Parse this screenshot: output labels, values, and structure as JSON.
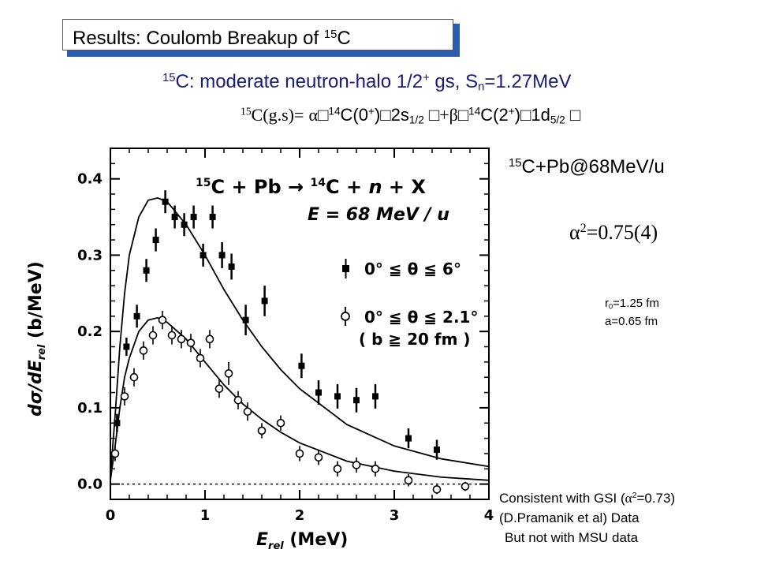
{
  "title": {
    "prefix": "Results: Coulomb Breakup of ",
    "mass": "15",
    "element": "C"
  },
  "subtitle": {
    "mass": "15",
    "text_a": "C: moderate neutron-halo 1/2",
    "sup_plus": "+",
    "text_b": " gs, S",
    "sub_n": "n",
    "text_c": "=1.27MeV"
  },
  "formula": {
    "mass": "15",
    "lhs": "C(g.s)=",
    "alpha": "α",
    "core1_mass": "14",
    "core1": "C(0",
    "core1_sup": "+",
    "core1_close": ")",
    "orb1": "2s",
    "orb1_sub": "1/2",
    "plus": "+",
    "beta": "β",
    "core2_mass": "14",
    "core2": "C(2",
    "core2_sup": "+",
    "core2_close": ")",
    "orb2": "1d",
    "orb2_sub": "5/2",
    "placeholder_glyph": "□"
  },
  "reaction": {
    "mass": "15",
    "text": "C+Pb@68MeV/u"
  },
  "alpha_result": {
    "alpha": "α",
    "exp": "2",
    "value": "=0.75(4)"
  },
  "params": {
    "r0_label": "r",
    "r0_sub": "0",
    "r0_value": "=1.25 fm",
    "a": "a=0.65 fm"
  },
  "notes": {
    "line1_a": "Consistent with GSI (",
    "alpha": "α",
    "exp": "2",
    "line1_b": "=0.73)",
    "line2": "(D.Pramanik et al) Data",
    "line3": "But not with MSU data"
  },
  "chart_data": {
    "type": "scatter",
    "inplot_title": {
      "a": "15",
      "b": "C + Pb → ",
      "c": "14",
      "d": "C + ",
      "e": "n",
      "f": " + X"
    },
    "energy_label": "E = 68 MeV / u",
    "xlabel": "E",
    "xlabel_sub": "rel",
    "xlabel_unit": " (MeV)",
    "ylabel": "dσ/dE",
    "ylabel_sub": "rel",
    "ylabel_unit": " (b/MeV)",
    "xlim": [
      0,
      4
    ],
    "ylim": [
      -0.02,
      0.44
    ],
    "xticks": [
      "0",
      "1",
      "2",
      "3",
      "4"
    ],
    "yticks": [
      "0.0",
      "0.1",
      "0.2",
      "0.3",
      "0.4"
    ],
    "legend": {
      "filled": "0° ≦ θ ≦ 6°",
      "open_1": "0° ≦ θ ≦ 2.1°",
      "open_2": "( b ≧ 20 fm )"
    },
    "series": [
      {
        "marker": "filled-square",
        "x": [
          0.07,
          0.17,
          0.28,
          0.38,
          0.48,
          0.58,
          0.68,
          0.78,
          0.88,
          0.98,
          1.08,
          1.18,
          1.28,
          1.43,
          1.63,
          2.02,
          2.2,
          2.4,
          2.6,
          2.8,
          3.15,
          3.45
        ],
        "y": [
          0.08,
          0.18,
          0.22,
          0.28,
          0.32,
          0.37,
          0.35,
          0.34,
          0.35,
          0.3,
          0.35,
          0.3,
          0.285,
          0.215,
          0.24,
          0.155,
          0.12,
          0.115,
          0.11,
          0.115,
          0.06,
          0.045
        ],
        "err": [
          0.012,
          0.012,
          0.015,
          0.015,
          0.015,
          0.015,
          0.015,
          0.015,
          0.015,
          0.015,
          0.015,
          0.017,
          0.017,
          0.02,
          0.02,
          0.016,
          0.016,
          0.016,
          0.016,
          0.016,
          0.013,
          0.013
        ]
      },
      {
        "marker": "open-circle",
        "x": [
          0.05,
          0.15,
          0.25,
          0.35,
          0.45,
          0.55,
          0.65,
          0.75,
          0.85,
          0.95,
          1.05,
          1.15,
          1.25,
          1.35,
          1.45,
          1.6,
          1.8,
          2.0,
          2.2,
          2.4,
          2.6,
          2.8,
          3.15,
          3.45,
          3.75
        ],
        "y": [
          0.04,
          0.115,
          0.14,
          0.175,
          0.195,
          0.215,
          0.195,
          0.19,
          0.185,
          0.165,
          0.19,
          0.125,
          0.145,
          0.11,
          0.095,
          0.07,
          0.08,
          0.04,
          0.035,
          0.02,
          0.025,
          0.02,
          0.005,
          -0.007,
          -0.003
        ],
        "err": [
          0.01,
          0.012,
          0.012,
          0.012,
          0.012,
          0.012,
          0.012,
          0.012,
          0.012,
          0.012,
          0.012,
          0.012,
          0.015,
          0.012,
          0.012,
          0.01,
          0.01,
          0.01,
          0.01,
          0.01,
          0.01,
          0.01,
          0.008,
          0.006,
          0.006
        ]
      }
    ],
    "curves": [
      {
        "x": [
          0.0,
          0.05,
          0.1,
          0.15,
          0.2,
          0.3,
          0.4,
          0.5,
          0.6,
          0.8,
          1.0,
          1.2,
          1.4,
          1.6,
          1.8,
          2.0,
          2.5,
          3.0,
          3.5,
          4.0
        ],
        "y": [
          0.01,
          0.09,
          0.18,
          0.25,
          0.3,
          0.35,
          0.372,
          0.375,
          0.37,
          0.34,
          0.3,
          0.255,
          0.215,
          0.18,
          0.15,
          0.125,
          0.078,
          0.05,
          0.033,
          0.023
        ]
      },
      {
        "x": [
          0.0,
          0.05,
          0.1,
          0.15,
          0.2,
          0.3,
          0.4,
          0.5,
          0.6,
          0.8,
          1.0,
          1.2,
          1.4,
          1.6,
          1.8,
          2.0,
          2.5,
          3.0,
          3.5,
          4.0
        ],
        "y": [
          0.005,
          0.05,
          0.1,
          0.14,
          0.165,
          0.2,
          0.215,
          0.218,
          0.212,
          0.19,
          0.16,
          0.13,
          0.105,
          0.085,
          0.068,
          0.054,
          0.03,
          0.017,
          0.009,
          0.005
        ]
      }
    ],
    "zero_line": 0.0
  }
}
